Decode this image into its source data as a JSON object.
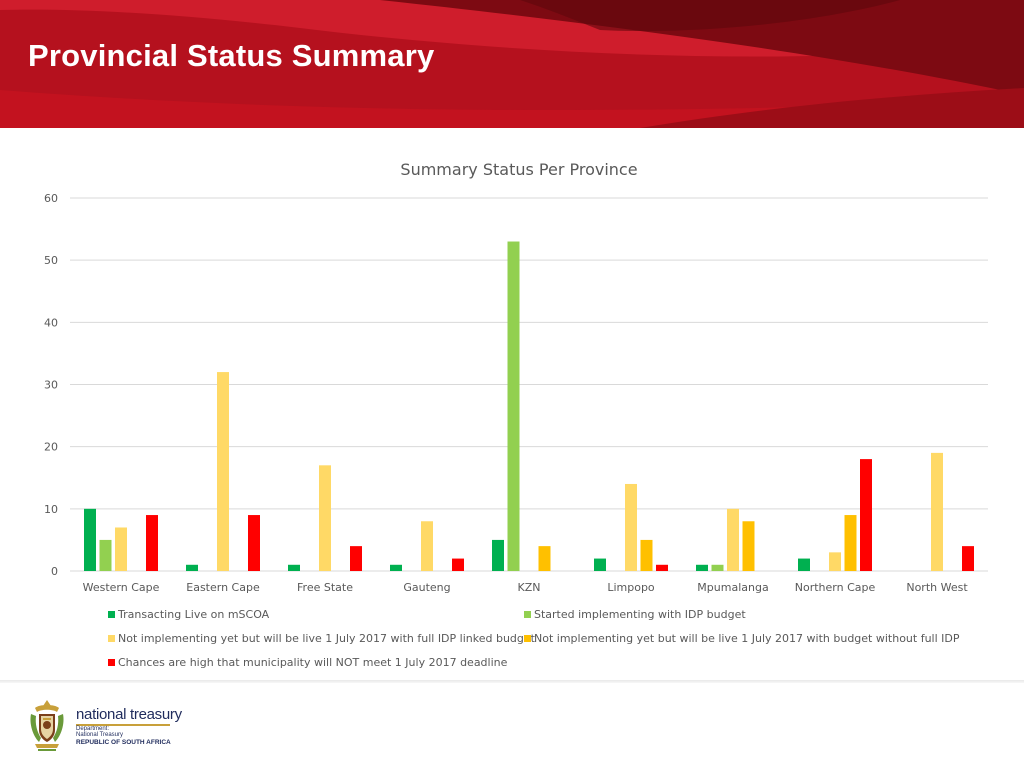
{
  "header": {
    "title": "Provincial Status Summary",
    "colors": {
      "primary": "#b5111e",
      "dark": "#7d0a12",
      "light": "#cf1d2c"
    }
  },
  "chart_data": {
    "type": "bar",
    "title": "Summary Status Per Province",
    "xlabel": "",
    "ylabel": "",
    "ylim": [
      0,
      60
    ],
    "yticks": [
      0,
      10,
      20,
      30,
      40,
      50,
      60
    ],
    "grid": true,
    "legend_position": "bottom",
    "categories": [
      "Western Cape",
      "Eastern Cape",
      "Free State",
      "Gauteng",
      "KZN",
      "Limpopo",
      "Mpumalanga",
      "Northern Cape",
      "North West"
    ],
    "series": [
      {
        "name": "Transacting Live on mSCOA",
        "color": "#00b050",
        "values": [
          10,
          1,
          1,
          1,
          5,
          2,
          1,
          2,
          0
        ]
      },
      {
        "name": "Started implementing with IDP budget",
        "color": "#92d050",
        "values": [
          5,
          0,
          0,
          0,
          53,
          0,
          1,
          0,
          0
        ]
      },
      {
        "name": "Not implementing yet but will be live 1 July 2017 with full IDP linked budget",
        "color": "#ffd966",
        "values": [
          7,
          32,
          17,
          8,
          0,
          14,
          10,
          3,
          19
        ]
      },
      {
        "name": "Not implementing yet but will be live 1 July 2017 with budget without full IDP",
        "color": "#ffc000",
        "values": [
          0,
          0,
          0,
          0,
          4,
          5,
          8,
          9,
          0
        ]
      },
      {
        "name": "Chances are high that municipality will NOT meet 1 July 2017 deadline",
        "color": "#ff0000",
        "values": [
          9,
          9,
          4,
          2,
          0,
          1,
          0,
          18,
          4
        ]
      }
    ]
  },
  "footer": {
    "logo_icon": "coat-of-arms-icon",
    "brand_name": "national treasury",
    "department_line1": "Department:",
    "department_line2": "National Treasury",
    "country": "REPUBLIC OF SOUTH AFRICA"
  }
}
